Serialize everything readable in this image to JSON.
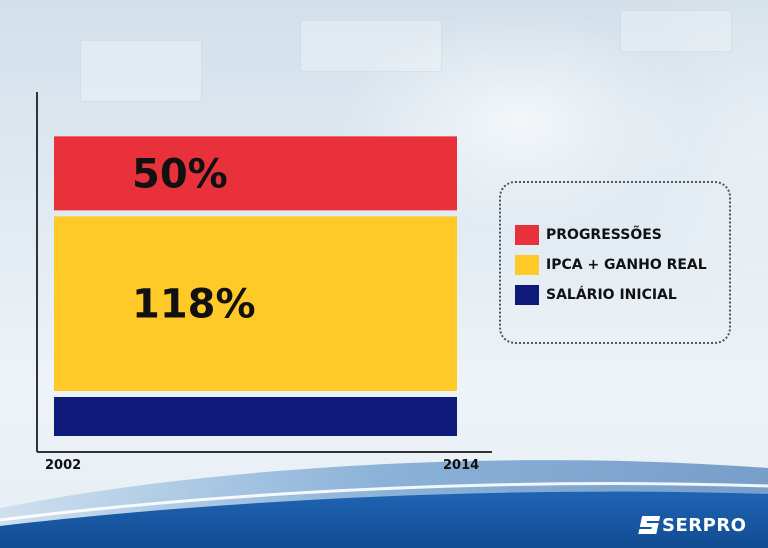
{
  "chart_data": {
    "type": "bar",
    "stacked": true,
    "categories": [
      "2002–2014"
    ],
    "series": [
      {
        "name": "SALÁRIO INICIAL",
        "values": [
          null
        ],
        "label": "",
        "color": "#0d1a7a"
      },
      {
        "name": "IPCA + GANHO REAL",
        "values": [
          118
        ],
        "label": "118%",
        "color": "#ffc928"
      },
      {
        "name": "PROGRESSÕES",
        "values": [
          50
        ],
        "label": "50%",
        "color": "#e8313a"
      }
    ],
    "xticks": [
      "2002",
      "2014"
    ],
    "title": "",
    "xlabel": "",
    "ylabel": "",
    "grid": false,
    "legend_position": "right"
  },
  "legend": {
    "items": [
      {
        "label": "PROGRESSÕES",
        "color": "#e8313a"
      },
      {
        "label": "IPCA + GANHO REAL",
        "color": "#ffc928"
      },
      {
        "label": "SALÁRIO INICIAL",
        "color": "#0d1a7a"
      }
    ]
  },
  "brand": {
    "name": "SERPRO",
    "icon": "serpro-s-icon"
  }
}
